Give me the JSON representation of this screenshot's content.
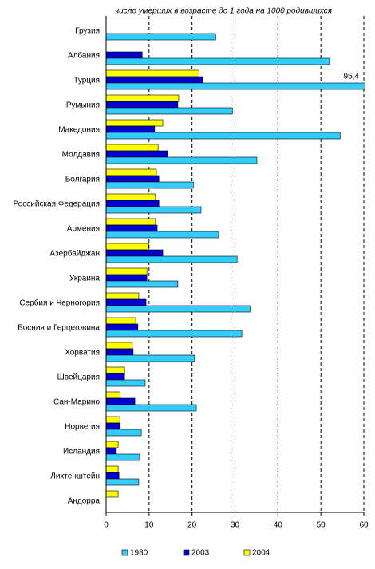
{
  "chart_data": {
    "type": "bar",
    "orientation": "horizontal",
    "title": "число умерших в возрасте до 1 года на 1000 родившихся",
    "categories": [
      "Грузия",
      "Албания",
      "Турция",
      "Румыния",
      "Македония",
      "Молдавия",
      "Болгария",
      "Российская Федерация",
      "Армения",
      "Азербайджан",
      "Украина",
      "Сербия и Черногория",
      "Босния и Герцеговина",
      "Хорватия",
      "Швейцария",
      "Сан-Марино",
      "Норвегия",
      "Исландия",
      "Лихтенштейн",
      "Андорра"
    ],
    "series": [
      {
        "name": "1980",
        "color": "#33ccff",
        "values": [
          25.5,
          52,
          95.4,
          29.4,
          54.5,
          35.1,
          20.3,
          22.1,
          26.2,
          30.5,
          16.7,
          33.5,
          31.6,
          20.6,
          9.1,
          21,
          8.2,
          7.8,
          7.6,
          null
        ],
        "value_labels": [
          null,
          null,
          "95,4",
          null,
          null,
          null,
          null,
          null,
          null,
          null,
          null,
          null,
          null,
          null,
          null,
          null,
          null,
          null,
          null,
          null
        ]
      },
      {
        "name": "2003",
        "color": "#0000cc",
        "values": [
          null,
          8.4,
          22.5,
          16.7,
          11.3,
          14.3,
          12.3,
          12.3,
          11.9,
          13.2,
          9.5,
          9.3,
          7.4,
          6.3,
          4.3,
          6.7,
          3.3,
          2.4,
          3.0,
          null
        ]
      },
      {
        "name": "2004",
        "color": "#ffff00",
        "values": [
          null,
          null,
          21.6,
          16.9,
          13.2,
          12.1,
          11.7,
          11.5,
          11.5,
          9.9,
          9.5,
          7.6,
          6.9,
          6.1,
          4.3,
          3.3,
          3.2,
          2.8,
          2.8,
          2.8
        ]
      }
    ],
    "xlim": [
      0,
      60
    ],
    "xticks": [
      0,
      10,
      20,
      30,
      40,
      50,
      60
    ],
    "grid": true,
    "legend": "bottom"
  }
}
